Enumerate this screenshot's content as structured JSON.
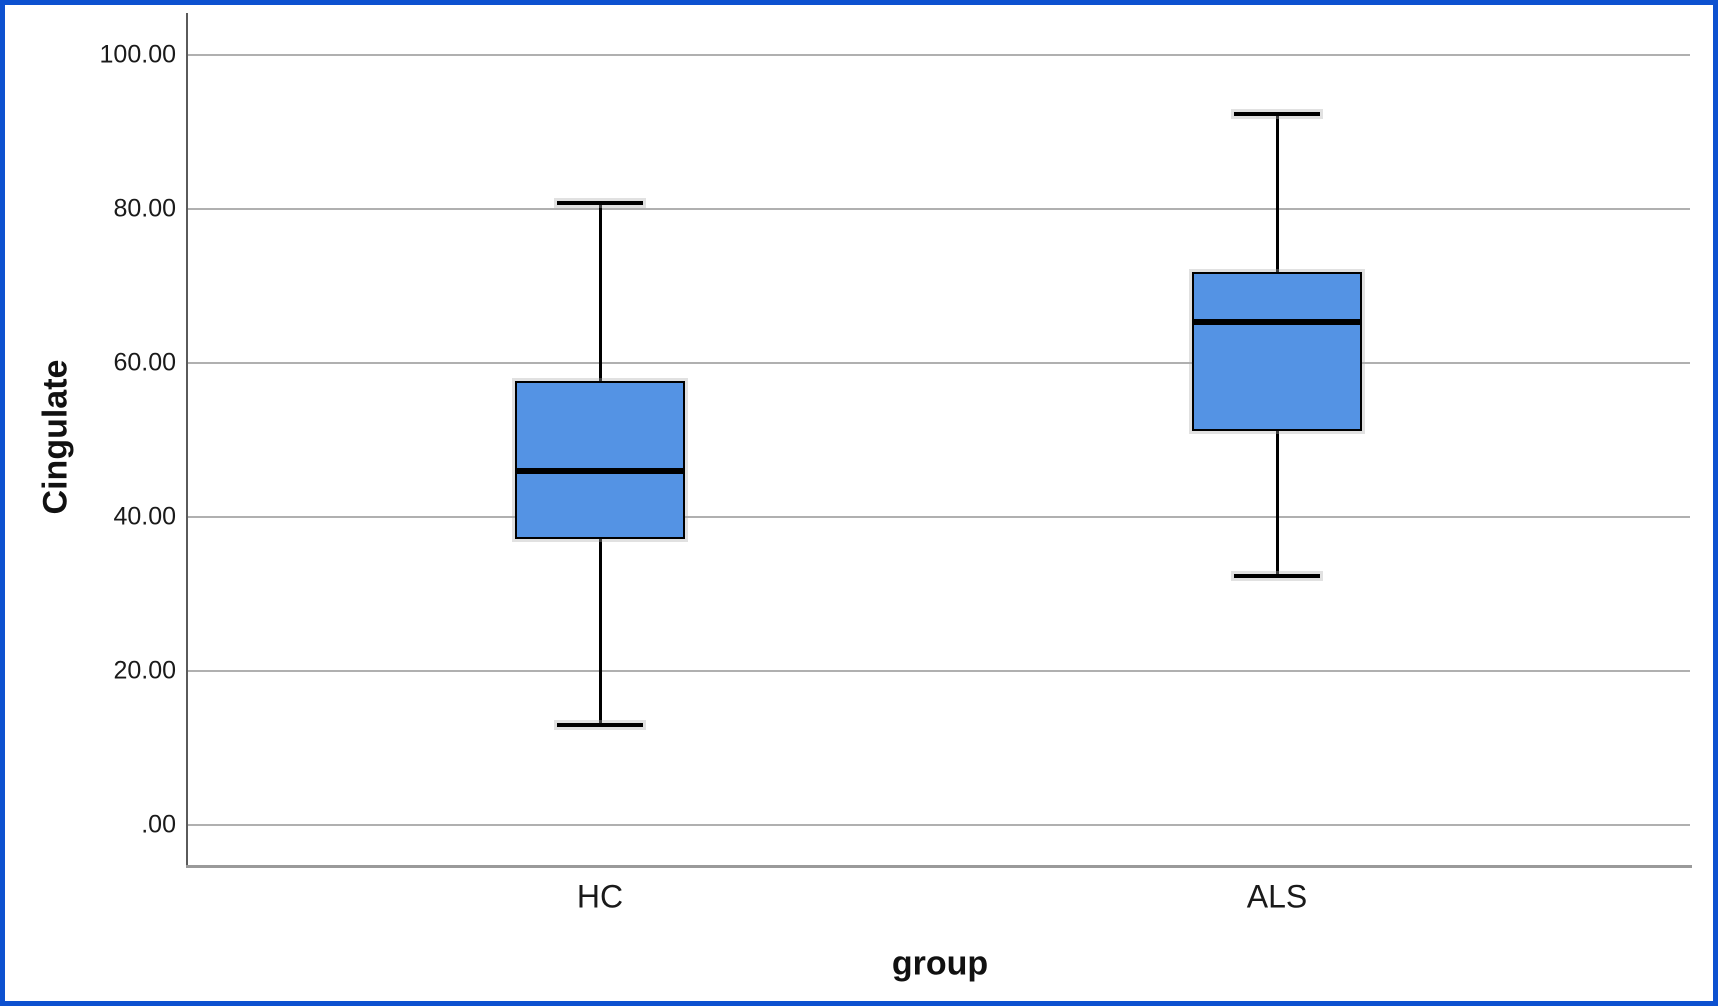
{
  "chart_data": {
    "type": "boxplot",
    "title": "",
    "xlabel": "group",
    "ylabel": "Cingulate",
    "categories": [
      "HC",
      "ALS"
    ],
    "ylim": [
      0,
      100
    ],
    "grid": "horizontal",
    "legend": "none",
    "yticks": [
      {
        "label": "100.00",
        "value": 100
      },
      {
        "label": "80.00",
        "value": 80
      },
      {
        "label": "60.00",
        "value": 60
      },
      {
        "label": "40.00",
        "value": 40
      },
      {
        "label": "20.00",
        "value": 20
      },
      {
        "label": ".00",
        "value": 0
      }
    ],
    "series": [
      {
        "name": "HC",
        "whisker_low": 13.0,
        "q1": 37.2,
        "median": 46.0,
        "q3": 57.7,
        "whisker_high": 80.8,
        "outliers": []
      },
      {
        "name": "ALS",
        "whisker_low": 32.3,
        "q1": 51.2,
        "median": 65.3,
        "q3": 71.8,
        "whisker_high": 92.4,
        "outliers": []
      }
    ],
    "colors": {
      "box_fill": "#5493e4",
      "box_border": "#000000",
      "median": "#000000",
      "whisker": "#000000",
      "gridline": "#b0b0b0",
      "y_axis_line": "#5a5a5a",
      "x_axis_line": "#9a9a9a",
      "text": "#1a1a1a",
      "figure_border": "#0d51d0",
      "background": "#ffffff"
    }
  }
}
